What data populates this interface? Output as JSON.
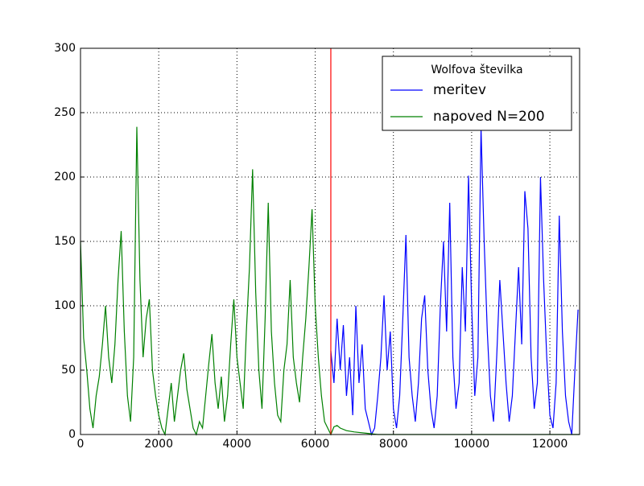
{
  "chart_data": {
    "type": "line",
    "xlim": [
      0,
      12760
    ],
    "ylim": [
      0,
      300
    ],
    "xticks": [
      0,
      2000,
      4000,
      6000,
      8000,
      10000,
      12000
    ],
    "yticks": [
      0,
      50,
      100,
      150,
      200,
      250,
      300
    ],
    "grid": true,
    "legend": {
      "title": "Wolfova številka",
      "position": "upper right"
    },
    "vline": {
      "x": 6400,
      "color": "#ff0000"
    },
    "series": [
      {
        "name": "meritev",
        "color": "#0000ff",
        "x": [
          6400,
          6480,
          6560,
          6640,
          6720,
          6800,
          6880,
          6960,
          7040,
          7120,
          7200,
          7280,
          7360,
          7440,
          7520,
          7600,
          7680,
          7760,
          7840,
          7920,
          8000,
          8080,
          8160,
          8240,
          8320,
          8400,
          8480,
          8560,
          8640,
          8720,
          8800,
          8880,
          8960,
          9040,
          9120,
          9200,
          9280,
          9360,
          9440,
          9520,
          9600,
          9680,
          9760,
          9840,
          9920,
          10000,
          10080,
          10160,
          10240,
          10320,
          10400,
          10480,
          10560,
          10640,
          10720,
          10800,
          10880,
          10960,
          11040,
          11120,
          11200,
          11280,
          11360,
          11440,
          11520,
          11600,
          11680,
          11760,
          11840,
          11920,
          12000,
          12080,
          12160,
          12240,
          12320,
          12400,
          12480,
          12560,
          12640,
          12720
        ],
        "values": [
          65,
          40,
          90,
          50,
          85,
          30,
          60,
          15,
          100,
          40,
          70,
          20,
          10,
          0,
          5,
          30,
          60,
          108,
          50,
          80,
          20,
          5,
          30,
          90,
          155,
          60,
          30,
          10,
          40,
          90,
          108,
          50,
          20,
          5,
          30,
          100,
          150,
          80,
          180,
          60,
          20,
          40,
          130,
          80,
          201,
          100,
          30,
          60,
          238,
          150,
          80,
          30,
          10,
          60,
          120,
          80,
          40,
          10,
          30,
          80,
          130,
          70,
          189,
          160,
          60,
          20,
          40,
          200,
          120,
          60,
          15,
          5,
          40,
          170,
          80,
          30,
          10,
          0,
          50,
          97
        ]
      },
      {
        "name": "napoved N=200",
        "color": "#008000",
        "x": [
          0,
          80,
          160,
          240,
          320,
          400,
          480,
          560,
          640,
          720,
          800,
          880,
          960,
          1040,
          1120,
          1200,
          1280,
          1360,
          1440,
          1520,
          1600,
          1680,
          1760,
          1840,
          1920,
          2000,
          2080,
          2160,
          2240,
          2320,
          2400,
          2480,
          2560,
          2640,
          2720,
          2800,
          2880,
          2960,
          3040,
          3120,
          3200,
          3280,
          3360,
          3440,
          3520,
          3600,
          3680,
          3760,
          3840,
          3920,
          4000,
          4080,
          4160,
          4240,
          4320,
          4400,
          4480,
          4560,
          4640,
          4720,
          4800,
          4880,
          4960,
          5040,
          5120,
          5200,
          5280,
          5360,
          5440,
          5520,
          5600,
          5680,
          5760,
          5840,
          5920,
          6000,
          6080,
          6160,
          6240,
          6320,
          6400,
          6480,
          6560,
          6640,
          6800,
          7000,
          7300,
          7600,
          12760
        ],
        "values": [
          150,
          75,
          50,
          20,
          5,
          30,
          45,
          70,
          100,
          60,
          40,
          70,
          120,
          158,
          80,
          30,
          10,
          60,
          239,
          120,
          60,
          90,
          105,
          50,
          30,
          15,
          5,
          0,
          20,
          40,
          10,
          30,
          50,
          63,
          35,
          20,
          5,
          0,
          10,
          5,
          30,
          55,
          78,
          40,
          20,
          45,
          10,
          30,
          70,
          105,
          60,
          40,
          20,
          80,
          130,
          206,
          110,
          50,
          20,
          90,
          180,
          80,
          40,
          15,
          10,
          50,
          70,
          120,
          60,
          40,
          25,
          60,
          90,
          130,
          175,
          100,
          60,
          30,
          10,
          5,
          0,
          6,
          7,
          5,
          3,
          2,
          1,
          0,
          0
        ]
      }
    ]
  }
}
